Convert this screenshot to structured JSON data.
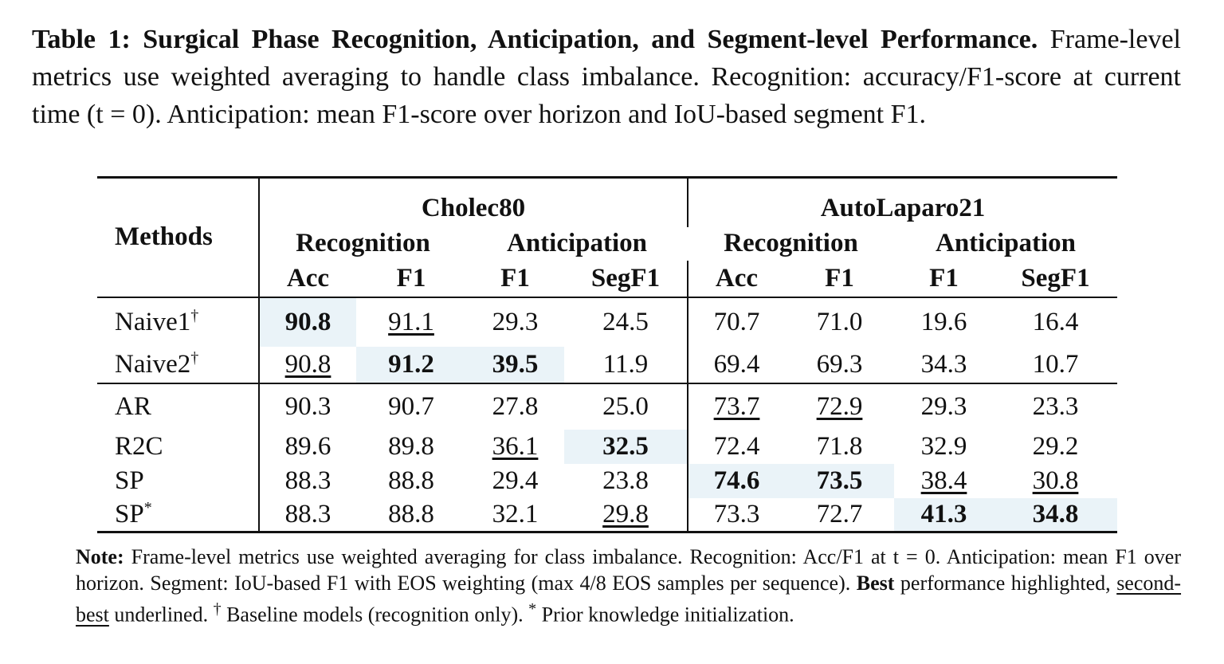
{
  "caption": {
    "label": "Table 1",
    "title": "Surgical Phase Recognition, Anticipation, and Segment-level Performance.",
    "body": "Frame-level metrics use weighted averaging to handle class imbalance. Recognition: accuracy/F1-score at current time (t = 0). Anticipation: mean F1-score over horizon and IoU-based segment F1."
  },
  "table": {
    "methods_header": "Methods",
    "datasets": [
      "Cholec80",
      "AutoLaparo21"
    ],
    "groups": [
      "Recognition",
      "Anticipation",
      "Recognition",
      "Anticipation"
    ],
    "metrics": [
      "Acc",
      "F1",
      "F1",
      "SegF1",
      "Acc",
      "F1",
      "F1",
      "SegF1"
    ],
    "baseline_rows": [
      {
        "name": "Naive1",
        "mark": "†",
        "cells": [
          {
            "v": "90.8",
            "best": true
          },
          {
            "v": "91.1",
            "second": true
          },
          {
            "v": "29.3"
          },
          {
            "v": "24.5"
          },
          {
            "v": "70.7"
          },
          {
            "v": "71.0"
          },
          {
            "v": "19.6"
          },
          {
            "v": "16.4"
          }
        ]
      },
      {
        "name": "Naive2",
        "mark": "†",
        "cells": [
          {
            "v": "90.8",
            "second": true
          },
          {
            "v": "91.2",
            "best": true
          },
          {
            "v": "39.5",
            "best": true
          },
          {
            "v": "11.9"
          },
          {
            "v": "69.4"
          },
          {
            "v": "69.3"
          },
          {
            "v": "34.3"
          },
          {
            "v": "10.7"
          }
        ]
      }
    ],
    "model_rows": [
      {
        "name": "AR",
        "mark": "",
        "cells": [
          {
            "v": "90.3"
          },
          {
            "v": "90.7"
          },
          {
            "v": "27.8"
          },
          {
            "v": "25.0"
          },
          {
            "v": "73.7",
            "second": true
          },
          {
            "v": "72.9",
            "second": true
          },
          {
            "v": "29.3"
          },
          {
            "v": "23.3"
          }
        ]
      },
      {
        "name": "R2C",
        "mark": "",
        "cells": [
          {
            "v": "89.6"
          },
          {
            "v": "89.8"
          },
          {
            "v": "36.1",
            "second": true
          },
          {
            "v": "32.5",
            "best": true
          },
          {
            "v": "72.4"
          },
          {
            "v": "71.8"
          },
          {
            "v": "32.9"
          },
          {
            "v": "29.2"
          }
        ]
      },
      {
        "name": "SP",
        "mark": "",
        "cells": [
          {
            "v": "88.3"
          },
          {
            "v": "88.8"
          },
          {
            "v": "29.4"
          },
          {
            "v": "23.8"
          },
          {
            "v": "74.6",
            "best": true
          },
          {
            "v": "73.5",
            "best": true
          },
          {
            "v": "38.4",
            "second": true
          },
          {
            "v": "30.8",
            "second": true
          }
        ]
      },
      {
        "name": "SP",
        "mark": "*",
        "cells": [
          {
            "v": "88.3"
          },
          {
            "v": "88.8"
          },
          {
            "v": "32.1"
          },
          {
            "v": "29.8",
            "second": true
          },
          {
            "v": "73.3"
          },
          {
            "v": "72.7"
          },
          {
            "v": "41.3",
            "best": true
          },
          {
            "v": "34.8",
            "best": true
          }
        ]
      }
    ]
  },
  "note": {
    "label": "Note:",
    "text1": "Frame-level metrics use weighted averaging for class imbalance. Recognition: Acc/F1 at t = 0. Anticipation: mean F1 over horizon. Segment: IoU-based F1 with EOS weighting (max 4/8 EOS samples per sequence).",
    "best": "Best",
    "text2": "performance highlighted,",
    "second_best": "second-best",
    "text3": "underlined.",
    "dagger": "†",
    "text4": "Baseline models (recognition only).",
    "star": "*",
    "text5": "Prior knowledge initialization."
  }
}
